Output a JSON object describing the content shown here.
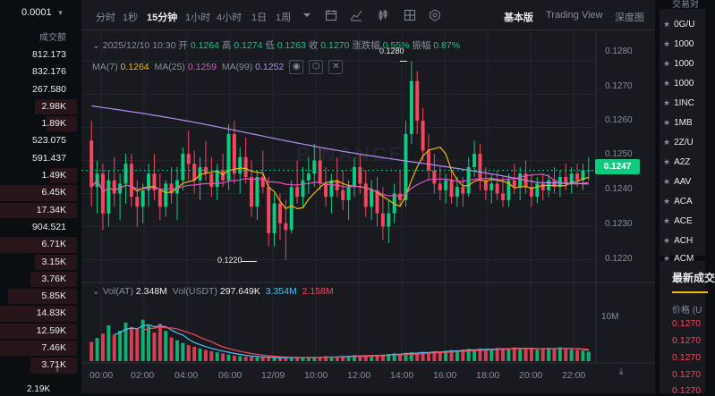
{
  "left_panel": {
    "price_step": "0.0001",
    "column_label": "成交额",
    "rows": [
      {
        "value": "812.173",
        "depth": 0
      },
      {
        "value": "832.176",
        "depth": 0
      },
      {
        "value": "267.580",
        "depth": 0
      },
      {
        "value": "2.98K",
        "depth": 0.55
      },
      {
        "value": "1.89K",
        "depth": 0.4
      },
      {
        "value": "523.075",
        "depth": 0
      },
      {
        "value": "591.437",
        "depth": 0
      },
      {
        "value": "1.49K",
        "depth": 0.35
      },
      {
        "value": "6.45K",
        "depth": 1.0
      },
      {
        "value": "17.34K",
        "depth": 1.0
      },
      {
        "value": "904.521",
        "depth": 0
      },
      {
        "value": "6.71K",
        "depth": 1.0
      },
      {
        "value": "3.15K",
        "depth": 0.55
      },
      {
        "value": "3.76K",
        "depth": 0.6
      },
      {
        "value": "5.85K",
        "depth": 0.9
      },
      {
        "value": "14.83K",
        "depth": 1.0
      },
      {
        "value": "12.59K",
        "depth": 1.0
      },
      {
        "value": "7.46K",
        "depth": 1.0
      },
      {
        "value": "3.71K",
        "depth": 0.6
      }
    ],
    "bottom_value": "2.19K"
  },
  "toolbar": {
    "intervals": [
      "分时",
      "1秒",
      "15分钟",
      "1小时",
      "4小时",
      "1日",
      "1周"
    ],
    "active_interval": "15分钟",
    "views": [
      "基本版",
      "Trading View",
      "深度图"
    ],
    "active_view": "基本版"
  },
  "ohlc_legend": {
    "datetime": "2025/12/10 10:30",
    "open_label": "开",
    "open": "0.1264",
    "high_label": "高",
    "high": "0.1274",
    "low_label": "低",
    "low": "0.1263",
    "close_label": "收",
    "close": "0.1270",
    "change_label": "涨跌幅",
    "change": "0.55%",
    "amplitude_label": "振幅",
    "amplitude": "0.87%"
  },
  "ma_legend": {
    "ma7_label": "MA(7)",
    "ma7": "0.1264",
    "ma25_label": "MA(25)",
    "ma25": "0.1259",
    "ma99_label": "MA(99)",
    "ma99": "0.1252"
  },
  "vol_legend": {
    "vol_label": "Vol(AT)",
    "vol": "2.348M",
    "volusdt_label": "Vol(USDT)",
    "volusdt": "297.649K",
    "ma1": "3.354M",
    "ma2": "2.158M"
  },
  "price_axis": [
    "0.1280",
    "0.1270",
    "0.1260",
    "0.1250",
    "0.1240",
    "0.1230",
    "0.1220"
  ],
  "current_price": "0.1247",
  "high_marker": "0.1280",
  "low_marker": "0.1220",
  "volume_axis_label": "10M",
  "time_axis": [
    "00:00",
    "02:00",
    "04:00",
    "06:00",
    "12/09",
    "10:00",
    "12:00",
    "14:00",
    "16:00",
    "18:00",
    "20:00",
    "22:00"
  ],
  "watermark": "BINANCE",
  "colors": {
    "up": "#0ecb81",
    "down": "#f6465d",
    "ma7": "#f0b90b",
    "ma25": "#e151c4",
    "ma99": "#b18cf5",
    "accent": "#f0b90b"
  },
  "chart_data": {
    "type": "candlestick",
    "y_range": [
      0.1215,
      0.1285
    ],
    "candles": [
      [
        0.1256,
        0.1262,
        0.1236,
        0.1242
      ],
      [
        0.1242,
        0.125,
        0.1234,
        0.1246
      ],
      [
        0.1246,
        0.1249,
        0.1229,
        0.1234
      ],
      [
        0.1234,
        0.1247,
        0.123,
        0.1244
      ],
      [
        0.1244,
        0.1251,
        0.1236,
        0.124
      ],
      [
        0.124,
        0.1246,
        0.1232,
        0.1243
      ],
      [
        0.1243,
        0.1252,
        0.1237,
        0.1249
      ],
      [
        0.1249,
        0.1252,
        0.1236,
        0.1239
      ],
      [
        0.1239,
        0.1244,
        0.123,
        0.1236
      ],
      [
        0.1236,
        0.1243,
        0.1231,
        0.1241
      ],
      [
        0.1241,
        0.1249,
        0.1236,
        0.1246
      ],
      [
        0.1246,
        0.1252,
        0.1238,
        0.1241
      ],
      [
        0.1241,
        0.1246,
        0.1232,
        0.1236
      ],
      [
        0.1236,
        0.1244,
        0.1233,
        0.1243
      ],
      [
        0.1243,
        0.1248,
        0.1237,
        0.124
      ],
      [
        0.124,
        0.1248,
        0.1232,
        0.1244
      ],
      [
        0.1244,
        0.1254,
        0.1241,
        0.1252
      ],
      [
        0.1252,
        0.1259,
        0.1244,
        0.1249
      ],
      [
        0.1249,
        0.1253,
        0.124,
        0.1244
      ],
      [
        0.1244,
        0.1251,
        0.1238,
        0.1248
      ],
      [
        0.1248,
        0.1256,
        0.1244,
        0.1246
      ],
      [
        0.1246,
        0.1251,
        0.1239,
        0.1242
      ],
      [
        0.1242,
        0.1249,
        0.1238,
        0.1247
      ],
      [
        0.1247,
        0.1252,
        0.1242,
        0.1244
      ],
      [
        0.1244,
        0.1261,
        0.1241,
        0.1258
      ],
      [
        0.1258,
        0.1262,
        0.1243,
        0.1246
      ],
      [
        0.1246,
        0.1254,
        0.124,
        0.1251
      ],
      [
        0.1251,
        0.1257,
        0.1243,
        0.1245
      ],
      [
        0.1245,
        0.125,
        0.1233,
        0.1236
      ],
      [
        0.1236,
        0.1247,
        0.1232,
        0.1245
      ],
      [
        0.1245,
        0.1253,
        0.124,
        0.1242
      ],
      [
        0.1242,
        0.1245,
        0.1224,
        0.1228
      ],
      [
        0.1228,
        0.124,
        0.1224,
        0.1237
      ],
      [
        0.1237,
        0.124,
        0.1226,
        0.1231
      ],
      [
        0.1231,
        0.1238,
        0.122,
        0.1229
      ],
      [
        0.1229,
        0.1244,
        0.1228,
        0.1242
      ],
      [
        0.1242,
        0.125,
        0.1237,
        0.1239
      ],
      [
        0.1239,
        0.1248,
        0.1236,
        0.1244
      ],
      [
        0.1244,
        0.1251,
        0.124,
        0.1246
      ],
      [
        0.1246,
        0.1255,
        0.1242,
        0.125
      ],
      [
        0.125,
        0.1254,
        0.1241,
        0.1243
      ],
      [
        0.1243,
        0.1248,
        0.1236,
        0.1239
      ],
      [
        0.1239,
        0.1246,
        0.1234,
        0.1244
      ],
      [
        0.1244,
        0.1251,
        0.1239,
        0.1241
      ],
      [
        0.1241,
        0.1247,
        0.1235,
        0.1238
      ],
      [
        0.1238,
        0.1244,
        0.1232,
        0.1242
      ],
      [
        0.1242,
        0.1251,
        0.1239,
        0.1248
      ],
      [
        0.1248,
        0.1252,
        0.124,
        0.1243
      ],
      [
        0.1243,
        0.1247,
        0.1233,
        0.1236
      ],
      [
        0.1236,
        0.1244,
        0.1232,
        0.1241
      ],
      [
        0.1241,
        0.1245,
        0.123,
        0.1234
      ],
      [
        0.1234,
        0.1242,
        0.1226,
        0.123
      ],
      [
        0.123,
        0.1238,
        0.1225,
        0.1234
      ],
      [
        0.1234,
        0.1243,
        0.1231,
        0.124
      ],
      [
        0.124,
        0.1247,
        0.1236,
        0.1238
      ],
      [
        0.1238,
        0.1262,
        0.1236,
        0.1258
      ],
      [
        0.1258,
        0.128,
        0.1255,
        0.1274
      ],
      [
        0.1274,
        0.1277,
        0.1258,
        0.1262
      ],
      [
        0.1262,
        0.1266,
        0.125,
        0.1253
      ],
      [
        0.1253,
        0.1258,
        0.1244,
        0.1247
      ],
      [
        0.1247,
        0.1252,
        0.124,
        0.1243
      ],
      [
        0.1243,
        0.1248,
        0.1238,
        0.1241
      ],
      [
        0.1241,
        0.1246,
        0.1237,
        0.1244
      ],
      [
        0.1244,
        0.1247,
        0.1237,
        0.1239
      ],
      [
        0.1239,
        0.1245,
        0.1236,
        0.1242
      ],
      [
        0.1242,
        0.1245,
        0.1236,
        0.124
      ],
      [
        0.124,
        0.1251,
        0.1239,
        0.1248
      ],
      [
        0.1248,
        0.1256,
        0.1245,
        0.1252
      ],
      [
        0.1252,
        0.1255,
        0.1241,
        0.1244
      ],
      [
        0.1244,
        0.1248,
        0.1238,
        0.1241
      ],
      [
        0.1241,
        0.1246,
        0.1237,
        0.1243
      ],
      [
        0.1243,
        0.1247,
        0.1238,
        0.124
      ],
      [
        0.124,
        0.1245,
        0.1236,
        0.1238
      ],
      [
        0.1238,
        0.1246,
        0.1236,
        0.1244
      ],
      [
        0.1244,
        0.1249,
        0.124,
        0.1242
      ],
      [
        0.1242,
        0.1248,
        0.1238,
        0.1246
      ],
      [
        0.1246,
        0.125,
        0.124,
        0.1242
      ],
      [
        0.1242,
        0.1246,
        0.1236,
        0.1239
      ],
      [
        0.1239,
        0.1245,
        0.1237,
        0.1243
      ],
      [
        0.1243,
        0.1246,
        0.1238,
        0.1241
      ],
      [
        0.1241,
        0.1246,
        0.1239,
        0.1244
      ],
      [
        0.1244,
        0.1248,
        0.124,
        0.1242
      ],
      [
        0.1242,
        0.1247,
        0.1239,
        0.1245
      ],
      [
        0.1245,
        0.1249,
        0.1241,
        0.1243
      ],
      [
        0.1243,
        0.1248,
        0.124,
        0.1246
      ],
      [
        0.1246,
        0.1249,
        0.1242,
        0.1244
      ],
      [
        0.1244,
        0.1249,
        0.1241,
        0.1247
      ],
      [
        0.1247,
        0.1251,
        0.1244,
        0.1247
      ]
    ],
    "volumes": [
      3.5,
      4.2,
      5.0,
      6.5,
      4.8,
      5.5,
      7.0,
      6.2,
      5.8,
      7.5,
      6.4,
      5.2,
      6.8,
      5.5,
      4.3,
      3.8,
      3.3,
      2.9,
      2.6,
      2.3,
      2.0,
      1.8,
      1.6,
      1.4,
      1.2,
      1.0,
      0.9,
      0.8,
      0.8,
      0.7,
      0.7,
      0.6,
      0.6,
      0.6,
      0.7,
      0.8,
      0.7,
      0.6,
      0.6,
      0.7,
      0.8,
      0.9,
      0.8,
      0.7,
      0.9,
      1.0,
      1.1,
      1.0,
      0.9,
      1.0,
      1.1,
      1.2,
      1.3,
      1.4,
      1.3,
      1.5,
      1.6,
      1.5,
      1.7,
      1.6,
      1.8,
      1.7,
      1.9,
      2.0,
      1.9,
      2.1,
      2.2,
      2.0,
      2.3,
      2.2,
      2.1,
      2.4,
      2.2,
      2.3,
      2.5,
      2.2,
      2.4,
      2.3,
      2.1,
      2.2,
      2.4,
      2.3,
      2.5,
      2.2,
      2.1,
      2.0,
      1.9,
      1.7
    ],
    "volume_range": [
      0,
      12
    ]
  },
  "right_panel": {
    "header": "交易对",
    "pairs": [
      "0G/U",
      "1000",
      "1000",
      "1000",
      "1INC",
      "1MB",
      "2Z/U",
      "A2Z",
      "AAV",
      "ACA",
      "ACE",
      "ACH",
      "ACM"
    ],
    "trades_title": "最新成交",
    "trades_sub": "价格 (U",
    "trade_prices": [
      "0.1270",
      "0.1270",
      "0.1270",
      "0.1270",
      "0.1270"
    ]
  }
}
